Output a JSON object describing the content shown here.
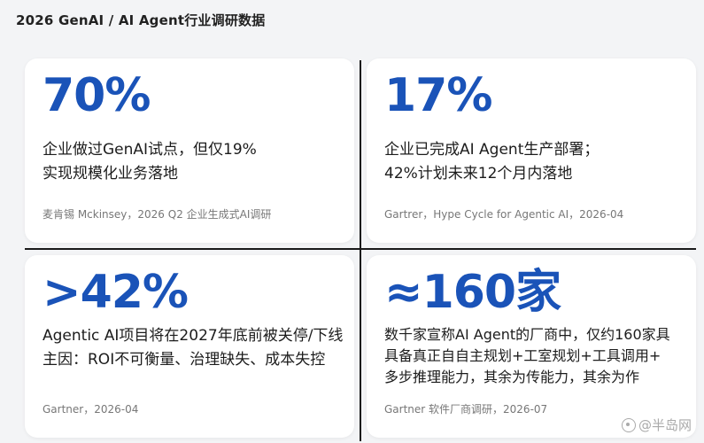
{
  "header": {
    "title": "2026 GenAI / AI Agent行业调研数据"
  },
  "cards": [
    {
      "stat": "70%",
      "lines": [
        "企业做过GenAI试点，但仅19%",
        "实现规模化业务落地"
      ],
      "source": "麦肯锡 Mckinsey，2026 Q2 企业生成式AI调研"
    },
    {
      "stat": "17%",
      "lines": [
        "企业已完成AI Agent生产部署；",
        "42%计划未来12个月内落地"
      ],
      "source": "Gartrer，Hype Cycle for Agentic AI，2026-04"
    },
    {
      "stat": ">42%",
      "lines": [
        "Agentic AI项目将在2027年底前被关停/下线",
        "主因：ROI不可衡量、治理缺失、成本失控"
      ],
      "source": "Gartner，2026-04"
    },
    {
      "stat": "≈160家",
      "lines": [
        "数千家宣称AI Agent的厂商中，仅约160家具",
        "具备真正自自主规划+工室规划+工具调用+",
        "多步推理能力，其余为传能力，其余为作"
      ],
      "source": "Gartner 软件厂商调研，2026-07"
    }
  ],
  "watermark": {
    "icon": "at-icon",
    "text": "@半岛网"
  },
  "colors": {
    "accent": "#1a53b8",
    "background": "#f3f4f6",
    "card": "#ffffff",
    "divider": "#1a1a1a"
  }
}
